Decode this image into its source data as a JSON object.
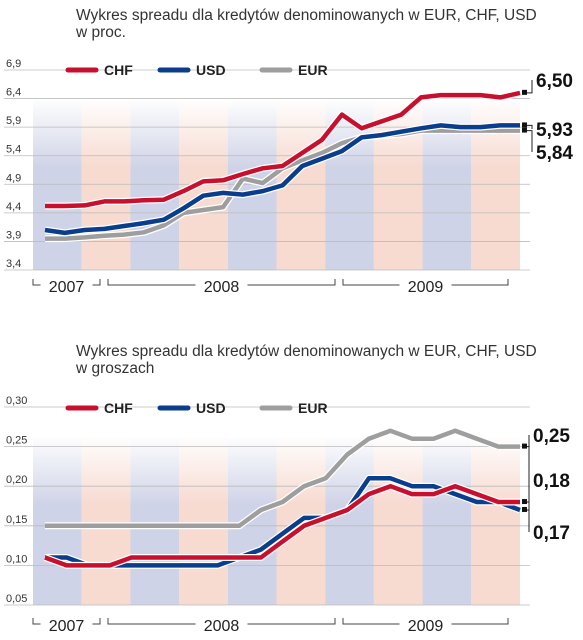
{
  "chart_data": [
    {
      "type": "line",
      "title": "Wykres spreadu dla kredytów denominowanych w EUR, CHF, USD\nw proc.",
      "ylim": [
        3.4,
        6.9
      ],
      "yticks": [
        "6,9",
        "6,4",
        "5,9",
        "5,4",
        "4,9",
        "4,4",
        "3,9",
        "3,4"
      ],
      "ytick_values": [
        6.9,
        6.4,
        5.9,
        5.4,
        4.9,
        4.4,
        3.9,
        3.4
      ],
      "years": [
        "2007",
        "2008",
        "2009"
      ],
      "legend_position": "top-left",
      "x_count": 28,
      "series": [
        {
          "name": "CHF",
          "color": "#c8102e",
          "values": [
            4.52,
            4.52,
            4.53,
            4.6,
            4.6,
            4.62,
            4.63,
            4.78,
            4.95,
            4.97,
            5.08,
            5.18,
            5.22,
            5.45,
            5.68,
            6.12,
            5.88,
            6.0,
            6.12,
            6.42,
            6.46,
            6.46,
            6.46,
            6.42,
            6.5
          ]
        },
        {
          "name": "USD",
          "color": "#0a3d8c",
          "values": [
            4.1,
            4.05,
            4.1,
            4.12,
            4.17,
            4.22,
            4.28,
            4.48,
            4.7,
            4.75,
            4.72,
            4.78,
            4.88,
            5.22,
            5.35,
            5.48,
            5.72,
            5.76,
            5.82,
            5.88,
            5.93,
            5.9,
            5.9,
            5.93,
            5.93
          ]
        },
        {
          "name": "EUR",
          "color": "#9e9e9e",
          "values": [
            3.95,
            3.95,
            3.97,
            4.0,
            4.02,
            4.06,
            4.18,
            4.4,
            4.45,
            4.5,
            5.0,
            4.92,
            5.18,
            5.32,
            5.45,
            5.62,
            5.72,
            5.75,
            5.78,
            5.84,
            5.84,
            5.84,
            5.84,
            5.84,
            5.84
          ]
        }
      ],
      "end_labels": [
        "6,50",
        "5,93",
        "5,84"
      ]
    },
    {
      "type": "line",
      "title": "Wykres spreadu dla kredytów denominowanych w EUR, CHF, USD\nw groszach",
      "ylim": [
        0.05,
        0.3
      ],
      "yticks": [
        "0,30",
        "0,25",
        "0,20",
        "0,15",
        "0,10",
        "0,05"
      ],
      "ytick_values": [
        0.3,
        0.25,
        0.2,
        0.15,
        0.1,
        0.05
      ],
      "years": [
        "2007",
        "2008",
        "2009"
      ],
      "legend_position": "top-left",
      "series": [
        {
          "name": "CHF",
          "color": "#c8102e",
          "values": [
            0.11,
            0.1,
            0.1,
            0.1,
            0.11,
            0.11,
            0.11,
            0.11,
            0.11,
            0.11,
            0.11,
            0.13,
            0.15,
            0.16,
            0.17,
            0.19,
            0.2,
            0.19,
            0.19,
            0.2,
            0.19,
            0.18,
            0.18
          ]
        },
        {
          "name": "USD",
          "color": "#0a3d8c",
          "values": [
            0.11,
            0.11,
            0.1,
            0.1,
            0.1,
            0.1,
            0.1,
            0.1,
            0.1,
            0.11,
            0.12,
            0.14,
            0.16,
            0.16,
            0.17,
            0.21,
            0.21,
            0.2,
            0.2,
            0.19,
            0.18,
            0.18,
            0.17
          ]
        },
        {
          "name": "EUR",
          "color": "#9e9e9e",
          "values": [
            0.15,
            0.15,
            0.15,
            0.15,
            0.15,
            0.15,
            0.15,
            0.15,
            0.15,
            0.15,
            0.17,
            0.18,
            0.2,
            0.21,
            0.24,
            0.26,
            0.27,
            0.26,
            0.26,
            0.27,
            0.26,
            0.25,
            0.25
          ]
        }
      ],
      "end_labels": [
        "0,25",
        "0,18",
        "0,17"
      ]
    }
  ]
}
